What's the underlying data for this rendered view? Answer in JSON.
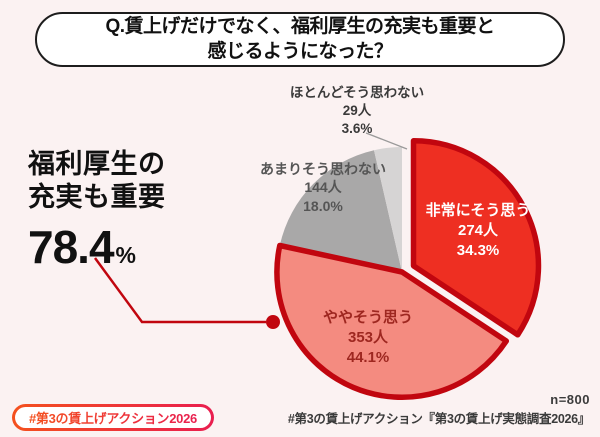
{
  "title": {
    "line1": "Q.賃上げだけでなく、福利厚生の充実も重要と",
    "line2": "感じるようになった？"
  },
  "highlight": {
    "line1": "福利厚生の",
    "line2": "充実も重要",
    "value": "78.4",
    "unit": "%"
  },
  "chart_data": {
    "type": "pie",
    "title": "Q.賃上げだけでなく、福利厚生の充実も重要と感じるようになった？",
    "sample_size": "n=800",
    "direction": "clockwise",
    "start_angle_deg": 0,
    "outline_color": "#c1060f",
    "highlighted_share_label": "78.4%",
    "slices": [
      {
        "label": "非常にそう思う",
        "count": "274人",
        "pct": "34.3%",
        "value": 34.3,
        "color": "#ee2f22",
        "text_color": "#ffffff",
        "outlined": true,
        "explode": 13
      },
      {
        "label": "ややそう思う",
        "count": "353人",
        "pct": "44.1%",
        "value": 44.1,
        "color": "#f48b80",
        "text_color": "#9e2720",
        "outlined": true,
        "explode": 0
      },
      {
        "label": "あまりそう思わない",
        "count": "144人",
        "pct": "18.0%",
        "value": 18.0,
        "color": "#a9a8a8",
        "text_color": "#555555",
        "outlined": false,
        "explode": 0
      },
      {
        "label": "ほとんどそう思わない",
        "count": "29人",
        "pct": "3.6%",
        "value": 3.6,
        "color": "#d6d4d4",
        "text_color": "#3a3a3a",
        "outlined": false,
        "explode": 0
      }
    ]
  },
  "footer": {
    "badge": "#第3の賃上げアクション2026",
    "sample": "n=800",
    "source": "#第3の賃上げアクション『第3の賃上げ実態調査2026』"
  },
  "colors": {
    "background": "#fbf2f2",
    "accent_red": "#c1060f",
    "badge_gradient_start": "#f4511e",
    "badge_gradient_end": "#e91e4f"
  }
}
